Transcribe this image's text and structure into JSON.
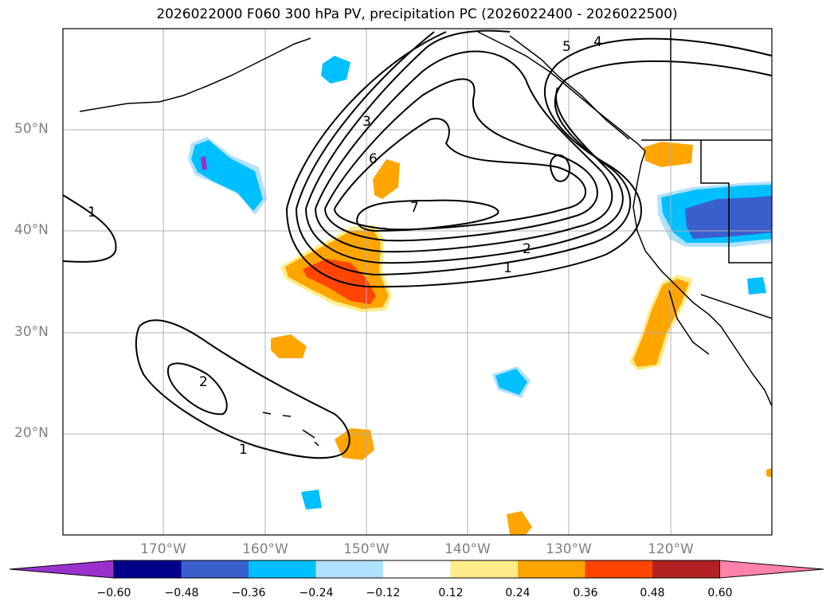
{
  "title": "2026022000 F060 300 hPa PV, precipitation PC (2026022400 - 2026022500)",
  "lat_labels": [
    "50°N",
    "40°N",
    "30°N",
    "20°N"
  ],
  "lon_labels": [
    "170°W",
    "160°W",
    "150°W",
    "140°W",
    "130°W",
    "120°W"
  ],
  "contour_labels": [
    "1",
    "2",
    "3",
    "4",
    "5",
    "6",
    "7"
  ],
  "colorbar": {
    "ticks": [
      "−0.60",
      "−0.48",
      "−0.36",
      "−0.24",
      "−0.12",
      "0.12",
      "0.24",
      "0.36",
      "0.48",
      "0.60"
    ],
    "colors": [
      "#9932cc",
      "#00008b",
      "#3a5fcd",
      "#00bfff",
      "#b0e2ff",
      "#ffffff",
      "#ffec8b",
      "#ffa500",
      "#ff4500",
      "#b22222",
      "#ff82ab"
    ]
  },
  "colors": {
    "grid": "#b0b0b0",
    "contour": "#000000",
    "axis_label": "#808080"
  }
}
